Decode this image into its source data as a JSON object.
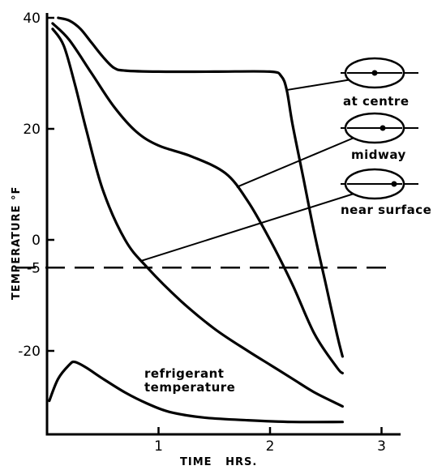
{
  "chart_data": {
    "type": "line",
    "title": "",
    "xlabel": "TIME   HRS.",
    "ylabel": "TEMPERATURE °F",
    "xlim": [
      0,
      3.2
    ],
    "ylim": [
      -34,
      41
    ],
    "x_ticks": [
      {
        "value": 1,
        "label": "1"
      },
      {
        "value": 2,
        "label": "2"
      },
      {
        "value": 3,
        "label": "3"
      }
    ],
    "y_ticks": [
      {
        "value": 40,
        "label": "40"
      },
      {
        "value": 20,
        "label": "20"
      },
      {
        "value": 0,
        "label": "0"
      },
      {
        "value": -5,
        "label": "-5"
      },
      {
        "value": -20,
        "label": "-20"
      }
    ],
    "reference_line": {
      "y": -5,
      "style": "dashed"
    },
    "series": [
      {
        "name": "at centre",
        "x": [
          0.1,
          0.2,
          0.3,
          0.4,
          0.5,
          0.6,
          0.7,
          1.0,
          1.5,
          2.0,
          2.1,
          2.15,
          2.2,
          2.3,
          2.4,
          2.5,
          2.6,
          2.65
        ],
        "y": [
          40,
          39.5,
          38,
          35.5,
          33,
          31,
          30.5,
          30.3,
          30.3,
          30.3,
          29.5,
          27,
          21,
          11,
          1,
          -8,
          -17,
          -21
        ]
      },
      {
        "name": "midway",
        "x": [
          0.05,
          0.2,
          0.4,
          0.6,
          0.8,
          1.0,
          1.3,
          1.6,
          1.8,
          2.0,
          2.2,
          2.4,
          2.6,
          2.65
        ],
        "y": [
          39,
          36,
          30,
          24,
          19.5,
          17,
          15,
          12,
          7,
          0,
          -8,
          -17,
          -23,
          -24
        ]
      },
      {
        "name": "near surface",
        "x": [
          0.05,
          0.15,
          0.25,
          0.35,
          0.5,
          0.7,
          0.9,
          1.2,
          1.5,
          1.8,
          2.0,
          2.2,
          2.4,
          2.6,
          2.65
        ],
        "y": [
          38,
          35,
          28,
          20,
          9,
          0,
          -5,
          -11,
          -16,
          -20,
          -22.5,
          -25,
          -27.5,
          -29.5,
          -30
        ]
      },
      {
        "name": "refrigerant temperature",
        "x": [
          0.02,
          0.1,
          0.2,
          0.25,
          0.35,
          0.5,
          0.7,
          0.9,
          1.1,
          1.4,
          1.8,
          2.2,
          2.65
        ],
        "y": [
          -29,
          -25,
          -22.5,
          -22,
          -23,
          -25,
          -27.5,
          -29.5,
          -31,
          -32,
          -32.5,
          -32.8,
          -32.8
        ]
      }
    ],
    "annotations": [
      {
        "text": "at centre",
        "points_to": "at centre",
        "at_x": 2.15
      },
      {
        "text": "midway",
        "points_to": "midway",
        "at_x": 1.7
      },
      {
        "text": "near surface",
        "points_to": "near surface",
        "at_x": 0.85
      },
      {
        "text": "refrigerant\ntemperature",
        "points_to": "refrigerant temperature"
      }
    ],
    "grid": false,
    "legend": "none"
  }
}
